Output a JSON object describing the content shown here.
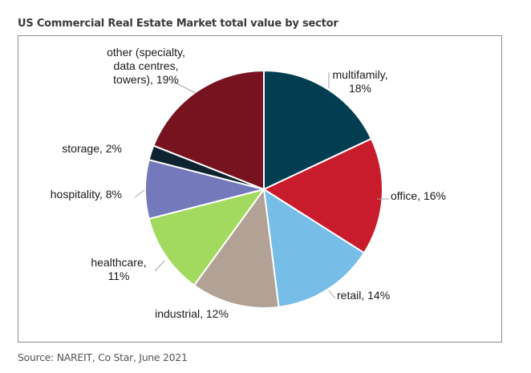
{
  "chart_data": {
    "type": "pie",
    "title": "US Commercial Real Estate Market total value by sector",
    "source": "Source: NAREIT, Co Star, June 2021",
    "unit": "%",
    "start_angle_deg": 0,
    "direction": "clockwise",
    "slices": [
      {
        "name": "multifamily",
        "value": 18,
        "color": "#033d52",
        "label_lines": [
          "multifamily,",
          "18%"
        ]
      },
      {
        "name": "office",
        "value": 16,
        "color": "#c81c2c",
        "label_lines": [
          "office, 16%"
        ]
      },
      {
        "name": "retail",
        "value": 14,
        "color": "#76bee7",
        "label_lines": [
          "retail, 14%"
        ]
      },
      {
        "name": "industrial",
        "value": 12,
        "color": "#b2a195",
        "label_lines": [
          "industrial, 12%"
        ]
      },
      {
        "name": "healthcare",
        "value": 11,
        "color": "#a2da5f",
        "label_lines": [
          "healthcare,",
          "11%"
        ]
      },
      {
        "name": "hospitality",
        "value": 8,
        "color": "#7379ba",
        "label_lines": [
          "hospitality, 8%"
        ]
      },
      {
        "name": "storage",
        "value": 2,
        "color": "#0d2430",
        "label_lines": [
          "storage, 2%"
        ]
      },
      {
        "name": "other (specialty, data centres, towers)",
        "value": 19,
        "color": "#76131e",
        "label_lines": [
          "other (specialty,",
          "data centres,",
          "towers), 19%"
        ]
      }
    ]
  }
}
